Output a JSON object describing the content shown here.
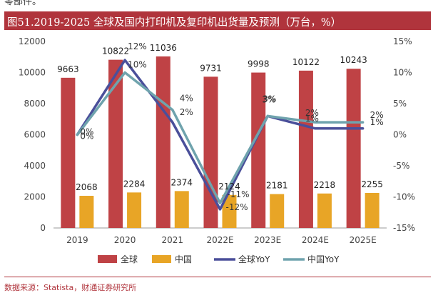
{
  "header": {
    "top_fragment": "零部件。",
    "title": "图51.2019-2025 全球及国内打印机及复印机出货量及预测（万台，%）"
  },
  "footer": {
    "source": "数据来源：Statista，财通证券研究所"
  },
  "colors": {
    "title_bg": "#b0343c",
    "global_bar": "#bf4245",
    "china_bar": "#e8a526",
    "global_yoy": "#4a4f9a",
    "china_yoy": "#6fa3ad"
  },
  "chart_data": {
    "type": "bar",
    "categories": [
      "2019",
      "2020",
      "2021",
      "2022E",
      "2023E",
      "2024E",
      "2025E"
    ],
    "series": [
      {
        "name": "全球",
        "type": "bar",
        "axis": "left",
        "values": [
          9663,
          10822,
          11036,
          9731,
          9998,
          10122,
          10243
        ],
        "labels": [
          "9663",
          "10822",
          "11036",
          "9731",
          "9998",
          "10122",
          "10243"
        ]
      },
      {
        "name": "中国",
        "type": "bar",
        "axis": "left",
        "values": [
          2068,
          2284,
          2374,
          2124,
          2181,
          2218,
          2255
        ],
        "labels": [
          "2068",
          "2284",
          "2374",
          "2124",
          "2181",
          "2218",
          "2255"
        ]
      },
      {
        "name": "全球YoY",
        "type": "line",
        "axis": "right",
        "values": [
          0,
          12,
          2,
          -12,
          3,
          1,
          1
        ],
        "labels": [
          "0%",
          "12%",
          "2%",
          "-12%",
          "3%",
          "1%",
          "1%"
        ]
      },
      {
        "name": "中国YoY",
        "type": "line",
        "axis": "right",
        "values": [
          0,
          10,
          4,
          -11,
          3,
          2,
          2
        ],
        "labels": [
          "0%",
          "10%",
          "4%",
          "-11%",
          "3%",
          "2%",
          "2%"
        ]
      }
    ],
    "y_left": {
      "min": 0,
      "max": 12000,
      "ticks": [
        "0",
        "2000",
        "4000",
        "6000",
        "8000",
        "10000",
        "12000"
      ]
    },
    "y_right": {
      "min": -15,
      "max": 15,
      "ticks": [
        "-15%",
        "-10%",
        "-5%",
        "0%",
        "5%",
        "10%",
        "15%"
      ]
    },
    "grid": false,
    "legend": "bottom"
  }
}
